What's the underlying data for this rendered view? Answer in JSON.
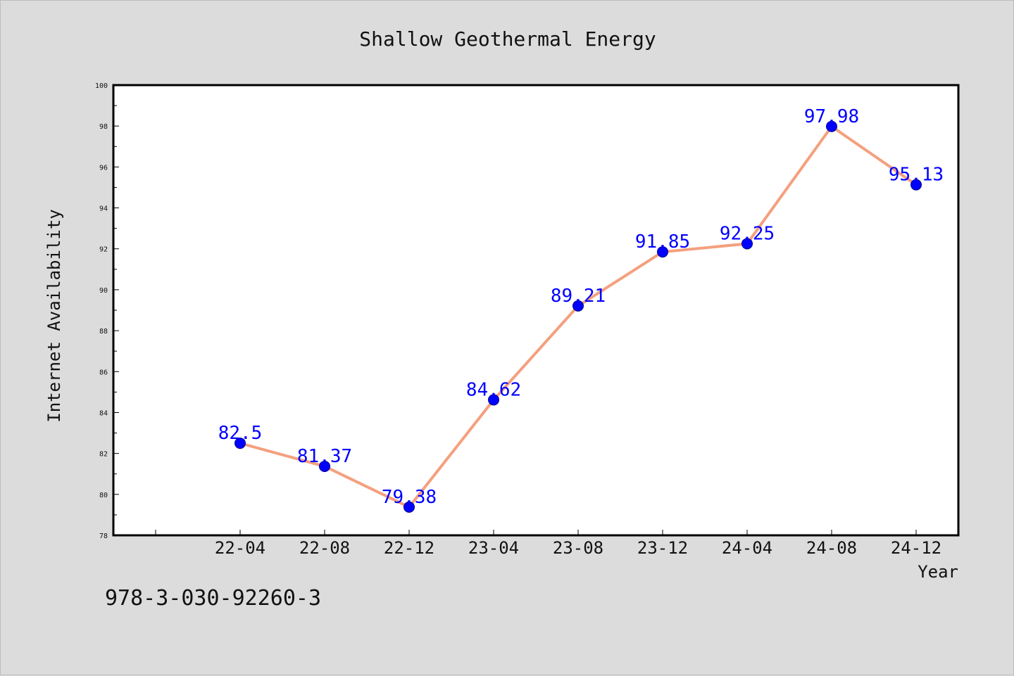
{
  "chart_data": {
    "type": "line",
    "title": "Shallow Geothermal Energy",
    "xlabel": "Year",
    "ylabel": "Internet Availability",
    "categories": [
      "22-04",
      "22-08",
      "22-12",
      "23-04",
      "23-08",
      "23-12",
      "24-04",
      "24-08",
      "24-12"
    ],
    "series": [
      {
        "values": [
          82.5,
          81.37,
          79.38,
          84.62,
          89.21,
          91.85,
          92.25,
          97.98,
          95.13
        ],
        "labels": [
          "82.5",
          "81.37",
          "79.38",
          "84.62",
          "89.21",
          "91.85",
          "92.25",
          "97.98",
          "95.13"
        ],
        "line_color": "#f4a07f",
        "marker_color": "#0000ff"
      }
    ],
    "ylim": [
      78,
      100
    ],
    "yticks": [
      "78",
      "80",
      "82",
      "84",
      "86",
      "88",
      "90",
      "92",
      "94",
      "96",
      "98",
      "100"
    ],
    "grid": false,
    "legend": "none"
  },
  "footnote": "978-3-030-92260-3"
}
